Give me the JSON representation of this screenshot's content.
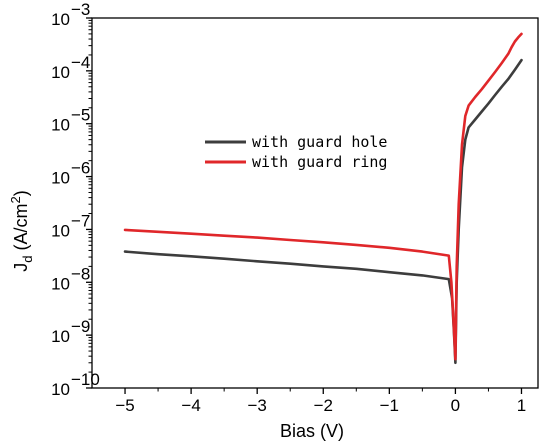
{
  "chart_data": {
    "type": "line",
    "title": "",
    "xlabel": "Bias (V)",
    "ylabel": {
      "main": "J",
      "sub": "d",
      "unit_pre": " (A/cm",
      "unit_sup": "2",
      "unit_post": ")"
    },
    "xlim": [
      -5.5,
      1.25
    ],
    "ylim": [
      1e-10,
      0.001
    ],
    "yscale": "log",
    "grid": false,
    "legend_position": "center",
    "x_ticks": [
      -5,
      -4,
      -3,
      -2,
      -1,
      0,
      1
    ],
    "x_tick_labels": [
      "−5",
      "−4",
      "−3",
      "−2",
      "−1",
      "0",
      "1"
    ],
    "y_ticks": [
      {
        "value": 1e-10,
        "base": "10",
        "exp": "−10"
      },
      {
        "value": 1e-09,
        "base": "10",
        "exp": "−9"
      },
      {
        "value": 1e-08,
        "base": "10",
        "exp": "−8"
      },
      {
        "value": 1e-07,
        "base": "10",
        "exp": "−7"
      },
      {
        "value": 1e-06,
        "base": "10",
        "exp": "−6"
      },
      {
        "value": 1e-05,
        "base": "10",
        "exp": "−5"
      },
      {
        "value": 0.0001,
        "base": "10",
        "exp": "−4"
      },
      {
        "value": 0.001,
        "base": "10",
        "exp": "−3"
      }
    ],
    "series": [
      {
        "name": "with guard hole",
        "color": "#3d3d3d",
        "x": [
          -5.0,
          -4.5,
          -4.0,
          -3.5,
          -3.0,
          -2.5,
          -2.0,
          -1.5,
          -1.0,
          -0.5,
          -0.1,
          -0.05,
          -0.02,
          0.0,
          0.02,
          0.05,
          0.1,
          0.15,
          0.2,
          0.3,
          0.4,
          0.5,
          0.6,
          0.7,
          0.8,
          0.9,
          1.0
        ],
        "y": [
          3.8e-08,
          3.4e-08,
          3.1e-08,
          2.8e-08,
          2.5e-08,
          2.25e-08,
          2e-08,
          1.8e-08,
          1.55e-08,
          1.35e-08,
          1.15e-08,
          5e-09,
          1e-09,
          3e-10,
          1e-08,
          1e-07,
          1.5e-06,
          5e-06,
          8.5e-06,
          1.2e-05,
          1.7e-05,
          2.4e-05,
          3.5e-05,
          5e-05,
          7e-05,
          0.000105,
          0.00016
        ]
      },
      {
        "name": "with guard ring",
        "color": "#e0272a",
        "x": [
          -5.0,
          -4.5,
          -4.0,
          -3.5,
          -3.0,
          -2.5,
          -2.0,
          -1.5,
          -1.0,
          -0.5,
          -0.1,
          -0.06,
          -0.03,
          0.0,
          0.02,
          0.05,
          0.1,
          0.15,
          0.2,
          0.3,
          0.4,
          0.5,
          0.6,
          0.7,
          0.8,
          0.85,
          0.9,
          0.95,
          1.0
        ],
        "y": [
          9.8e-08,
          9e-08,
          8.3e-08,
          7.6e-08,
          7e-08,
          6.3e-08,
          5.7e-08,
          5.1e-08,
          4.5e-08,
          3.8e-08,
          3.2e-08,
          1e-08,
          2e-09,
          3.5e-10,
          2e-08,
          3e-07,
          4e-06,
          1.4e-05,
          2.2e-05,
          3.2e-05,
          4.5e-05,
          6.5e-05,
          9.5e-05,
          0.00014,
          0.00021,
          0.00028,
          0.00036,
          0.00043,
          0.0005
        ]
      }
    ]
  }
}
